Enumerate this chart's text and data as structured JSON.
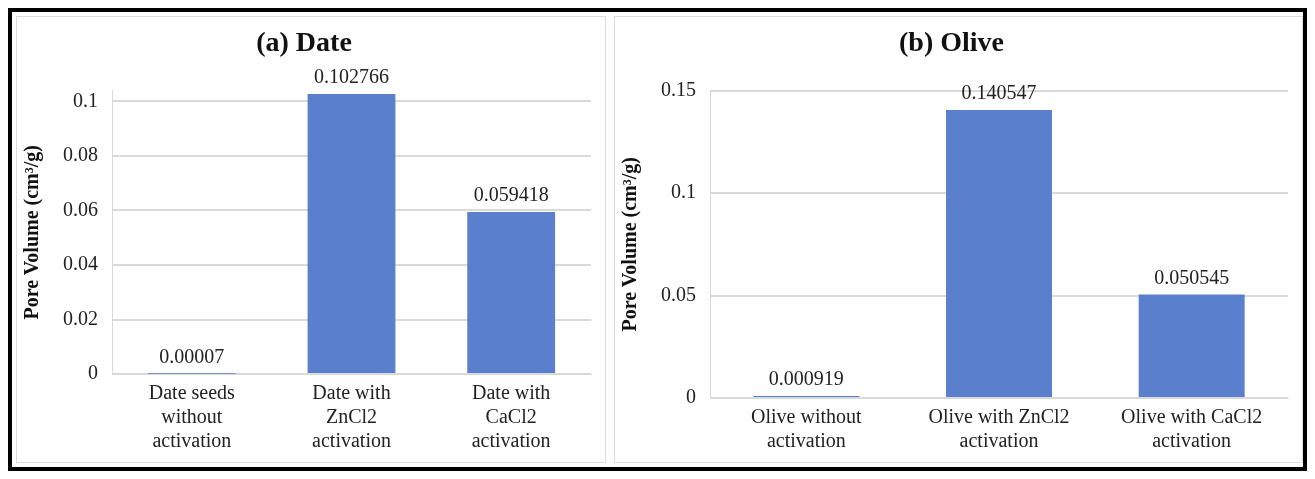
{
  "chart_data": [
    {
      "type": "bar",
      "title": "(a) Date",
      "ylabel": "Pore Volume (cm³/g)",
      "categories": [
        "Date seeds without activation",
        "Date with ZnCl2 activation",
        "Date with CaCl2 activation"
      ],
      "values": [
        7e-05,
        0.102766,
        0.059418
      ],
      "value_labels": [
        "0.00007",
        "0.102766",
        "0.059418"
      ],
      "color": "#5a7fcc",
      "ylim": [
        0,
        0.104
      ],
      "yticks": [
        0,
        0.02,
        0.04,
        0.06,
        0.08,
        0.1
      ],
      "grid": "y"
    },
    {
      "type": "bar",
      "title": "(b) Olive",
      "ylabel": "Pore Volume (cm³/g)",
      "categories": [
        "Olive without activation",
        "Olive with ZnCl2 activation",
        "Olive with CaCl2 activation"
      ],
      "values": [
        0.000919,
        0.140547,
        0.050545
      ],
      "color": "#5a7fcc",
      "ylim": [
        0,
        0.15
      ],
      "yticks": [
        0,
        0.05,
        0.1,
        0.15
      ],
      "grid": "y",
      "data_labels": true
    }
  ]
}
